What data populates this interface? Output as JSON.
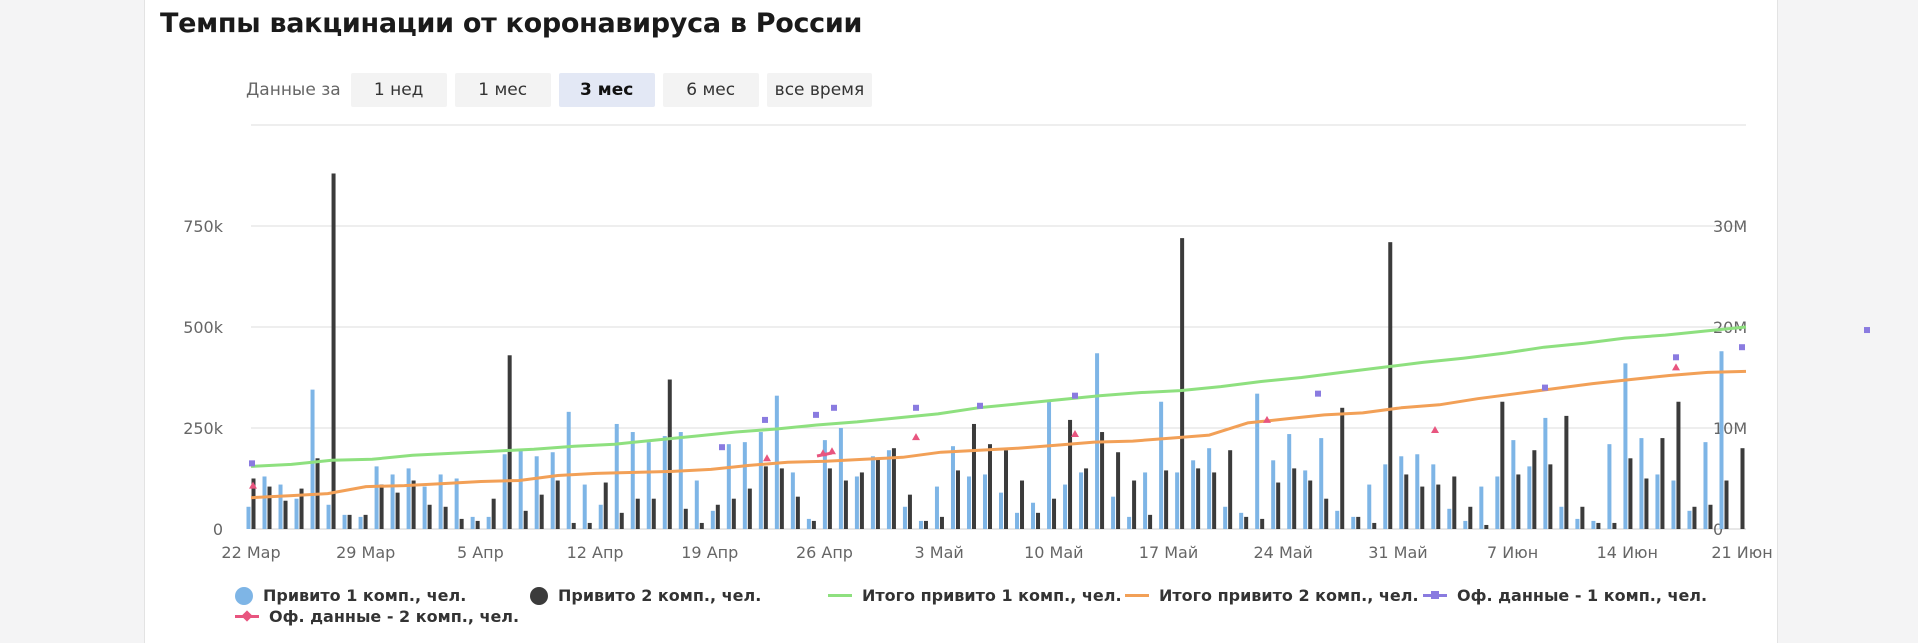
{
  "title": "Темпы вакцинации от коронавируса в России",
  "range": {
    "label": "Данные за",
    "options": [
      "1 нед",
      "1 мес",
      "3 мес",
      "6 мес",
      "все время"
    ],
    "selected": "3 мес"
  },
  "colors": {
    "bar1": "#7eb5e6",
    "bar2": "#3b3b3b",
    "total1": "#8ee07f",
    "total2": "#f2a057",
    "off1": "#8a7be0",
    "off2": "#e8557f"
  },
  "chart_data": {
    "type": "bar",
    "title": "Темпы вакцинации от коронавируса в России",
    "x_tick_labels": [
      "22 Мар",
      "29 Мар",
      "5 Апр",
      "12 Апр",
      "19 Апр",
      "26 Апр",
      "3 Май",
      "10 Май",
      "17 Май",
      "24 Май",
      "31 Май",
      "7 Июн",
      "14 Июн",
      "21 Июн"
    ],
    "x_start": "2021-03-22",
    "x_end": "2021-06-21",
    "y_left": {
      "ticks": [
        0,
        250000,
        500000,
        750000
      ],
      "tick_labels": [
        "0",
        "250k",
        "500k",
        "750k"
      ],
      "ylim": [
        0,
        1000000
      ]
    },
    "y_right": {
      "ticks": [
        0,
        10000000,
        20000000,
        30000000
      ],
      "tick_labels": [
        "0",
        "10M",
        "20M",
        "30M"
      ],
      "ylim": [
        0,
        40000000
      ]
    },
    "grid": true,
    "legend_position": "bottom",
    "series": [
      {
        "name": "Привито 1 комп., чел.",
        "kind": "bar",
        "axis": "left",
        "values": [
          55000,
          130000,
          110000,
          75000,
          345000,
          60000,
          35000,
          30000,
          155000,
          135000,
          150000,
          105000,
          135000,
          125000,
          30000,
          30000,
          185000,
          195000,
          180000,
          190000,
          290000,
          110000,
          60000,
          260000,
          240000,
          215000,
          230000,
          240000,
          120000,
          45000,
          210000,
          215000,
          240000,
          330000,
          140000,
          25000,
          220000,
          250000,
          130000,
          180000,
          195000,
          55000,
          20000,
          105000,
          205000,
          130000,
          135000,
          90000,
          40000,
          65000,
          320000,
          110000,
          140000,
          435000,
          80000,
          30000,
          140000,
          315000,
          140000,
          170000,
          200000,
          55000,
          40000,
          335000,
          170000,
          235000,
          145000,
          225000,
          45000,
          30000,
          110000,
          160000,
          180000,
          185000,
          160000,
          50000,
          20000,
          105000,
          130000,
          220000,
          155000,
          275000,
          55000,
          25000,
          20000,
          210000,
          410000,
          225000,
          135000,
          120000,
          45000,
          215000,
          440000
        ]
      },
      {
        "name": "Привито 2 комп., чел.",
        "kind": "bar",
        "axis": "left",
        "values": [
          125000,
          105000,
          70000,
          100000,
          175000,
          880000,
          35000,
          35000,
          110000,
          90000,
          120000,
          60000,
          55000,
          25000,
          20000,
          75000,
          430000,
          45000,
          85000,
          120000,
          15000,
          15000,
          115000,
          40000,
          75000,
          75000,
          370000,
          50000,
          15000,
          60000,
          75000,
          100000,
          155000,
          150000,
          80000,
          20000,
          150000,
          120000,
          140000,
          175000,
          200000,
          85000,
          20000,
          30000,
          145000,
          260000,
          210000,
          195000,
          120000,
          40000,
          75000,
          270000,
          150000,
          240000,
          190000,
          120000,
          35000,
          145000,
          720000,
          150000,
          140000,
          195000,
          30000,
          25000,
          115000,
          150000,
          120000,
          75000,
          300000,
          30000,
          15000,
          710000,
          135000,
          105000,
          110000,
          130000,
          55000,
          10000,
          315000,
          135000,
          195000,
          160000,
          280000,
          55000,
          15000,
          15000,
          175000,
          125000,
          225000,
          315000,
          55000,
          60000,
          120000,
          200000
        ]
      },
      {
        "name": "Итого привито 1 комп., чел.",
        "kind": "line",
        "axis": "right",
        "values": [
          6200000,
          6400000,
          6800000,
          6900000,
          7300000,
          7500000,
          7700000,
          7900000,
          8200000,
          8400000,
          8800000,
          9200000,
          9600000,
          9900000,
          10300000,
          10600000,
          11000000,
          11400000,
          12000000,
          12400000,
          12800000,
          13200000,
          13500000,
          13700000,
          14100000,
          14600000,
          15000000,
          15500000,
          16000000,
          16500000,
          16900000,
          17400000,
          18000000,
          18400000,
          18900000,
          19200000,
          19600000,
          20000000
        ]
      },
      {
        "name": "Итого привито 2 комп., чел.",
        "kind": "line",
        "axis": "right",
        "values": [
          3100000,
          3300000,
          3500000,
          4200000,
          4300000,
          4500000,
          4700000,
          4800000,
          5300000,
          5500000,
          5600000,
          5700000,
          5900000,
          6300000,
          6600000,
          6700000,
          6900000,
          7100000,
          7600000,
          7800000,
          8000000,
          8300000,
          8600000,
          8700000,
          9000000,
          9300000,
          10500000,
          10900000,
          11300000,
          11500000,
          12000000,
          12300000,
          12900000,
          13400000,
          13900000,
          14400000,
          14800000,
          15200000,
          15500000,
          15600000
        ]
      },
      {
        "name": "Оф. данные - 1 комп., чел.",
        "kind": "marker",
        "axis": "right",
        "values": [
          6500000,
          8100000,
          10800000,
          11300000,
          12000000,
          12000000,
          12200000,
          13200000,
          13400000,
          14000000,
          17000000,
          18000000,
          19700000
        ]
      },
      {
        "name": "Оф. данные - 2 комп., чел.",
        "kind": "marker",
        "axis": "right",
        "values": [
          4300000,
          7000000,
          7500000,
          7700000,
          9100000,
          9400000,
          10800000,
          9800000,
          16000000
        ]
      }
    ]
  }
}
